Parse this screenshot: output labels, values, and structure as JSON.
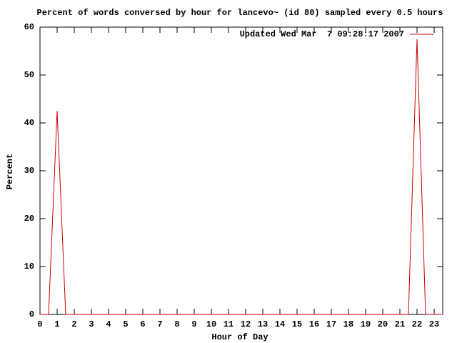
{
  "chart_data": {
    "type": "line",
    "title": "Percent of words conversed by hour for lancevo~ (id 80) sampled every 0.5 hours",
    "x_label": "Hour of Day",
    "y_label": "Percent",
    "x": [
      0,
      0.5,
      1,
      1.5,
      2,
      2.5,
      3,
      3.5,
      4,
      4.5,
      5,
      5.5,
      6,
      6.5,
      7,
      7.5,
      8,
      8.5,
      9,
      9.5,
      10,
      10.5,
      11,
      11.5,
      12,
      12.5,
      13,
      13.5,
      14,
      14.5,
      15,
      15.5,
      16,
      16.5,
      17,
      17.5,
      18,
      18.5,
      19,
      19.5,
      20,
      20.5,
      21,
      21.5,
      22,
      22.5,
      23,
      23.5
    ],
    "series": [
      {
        "name": "Updated Wed Mar  7 09:28:17 2007",
        "color": "#cc0000",
        "values": [
          0,
          0,
          42.5,
          0,
          0,
          0,
          0,
          0,
          0,
          0,
          0,
          0,
          0,
          0,
          0,
          0,
          0,
          0,
          0,
          0,
          0,
          0,
          0,
          0,
          0,
          0,
          0,
          0,
          0,
          0,
          0,
          0,
          0,
          0,
          0,
          0,
          0,
          0,
          0,
          0,
          0,
          0,
          0,
          0,
          57.5,
          0,
          0,
          0
        ]
      }
    ],
    "xlim": [
      0,
      23.5
    ],
    "ylim": [
      0,
      60
    ],
    "xticks": [
      0,
      1,
      2,
      3,
      4,
      5,
      6,
      7,
      8,
      9,
      10,
      11,
      12,
      13,
      14,
      15,
      16,
      17,
      18,
      19,
      20,
      21,
      22,
      23
    ],
    "yticks": [
      0,
      10,
      20,
      30,
      40,
      50,
      60
    ],
    "legend": "top-right",
    "grid": false
  }
}
